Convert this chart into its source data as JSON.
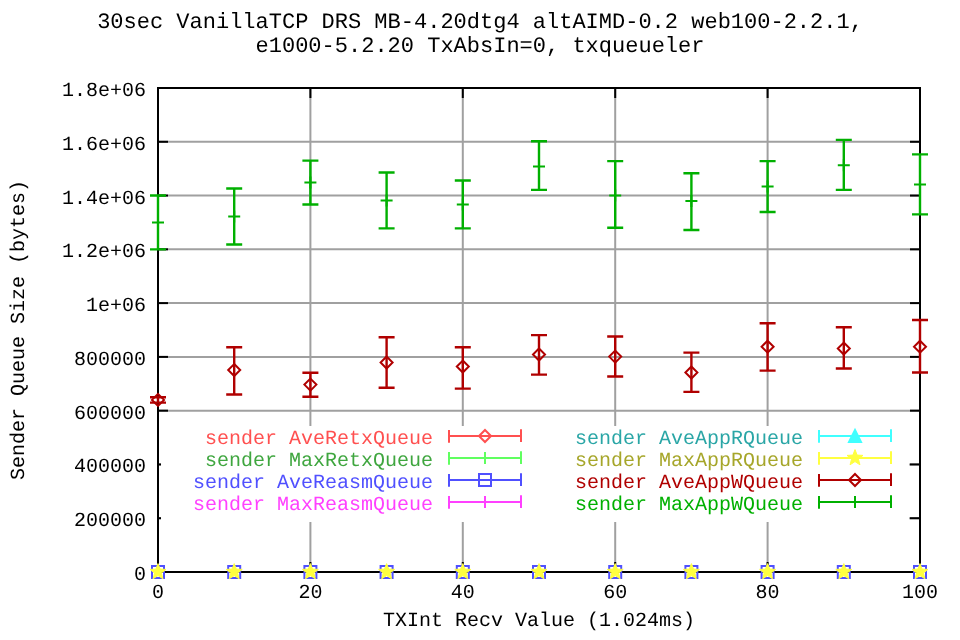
{
  "chart_data": {
    "type": "scatter",
    "title": "30sec VanillaTCP DRS MB-4.20dtg4 altAIMD-0.2 web100-2.2.1, e1000-5.2.20 TxAbsIn=0, txqueueler",
    "xlabel": "TXInt Recv Value (1.024ms)",
    "ylabel": "Sender Queue Size (bytes)",
    "x": [
      0,
      10,
      20,
      30,
      40,
      50,
      60,
      70,
      80,
      90,
      100
    ],
    "xlim": [
      0,
      100
    ],
    "xticks": [
      0,
      20,
      40,
      60,
      80,
      100
    ],
    "ylim": [
      0,
      1800000
    ],
    "yticks": [
      0,
      200000,
      400000,
      600000,
      800000,
      {
        "value": 1000000,
        "label": "1e+06"
      },
      {
        "value": 1200000,
        "label": "1.2e+06"
      },
      {
        "value": 1400000,
        "label": "1.4e+06"
      },
      {
        "value": 1600000,
        "label": "1.6e+06"
      },
      {
        "value": 1800000,
        "label": "1.8e+06"
      }
    ],
    "grid": true,
    "legend": "bottom",
    "series": [
      {
        "name": "sender AveRetxQueue",
        "color": "#ff5050",
        "marker": "diamond",
        "values": [
          null,
          null,
          null,
          null,
          null,
          null,
          null,
          null,
          null,
          null,
          null
        ]
      },
      {
        "name": "sender MaxRetxQueue",
        "color": "#60ff60",
        "marker": "cross",
        "values": [
          null,
          null,
          null,
          null,
          null,
          null,
          null,
          null,
          null,
          null,
          null
        ]
      },
      {
        "name": "sender AveReasmQueue",
        "color": "#5050ff",
        "marker": "square",
        "values": [
          0,
          0,
          0,
          0,
          0,
          0,
          0,
          0,
          0,
          0,
          0
        ]
      },
      {
        "name": "sender MaxReasmQueue",
        "color": "#ff40ff",
        "marker": "cross",
        "values": [
          null,
          null,
          null,
          null,
          null,
          null,
          null,
          null,
          null,
          null,
          null
        ]
      },
      {
        "name": "sender AveAppRQueue",
        "color": "#40ffff",
        "marker": "triangle",
        "values": [
          null,
          null,
          null,
          null,
          null,
          null,
          null,
          null,
          null,
          null,
          null
        ]
      },
      {
        "name": "sender MaxAppRQueue",
        "color": "#ffff40",
        "marker": "star",
        "values": [
          0,
          0,
          0,
          0,
          0,
          0,
          0,
          0,
          0,
          0,
          0
        ]
      },
      {
        "name": "sender AveAppWQueue",
        "color": "#b00000",
        "marker": "diamond",
        "values": [
          640000,
          751000,
          697000,
          779000,
          764000,
          809000,
          801000,
          742000,
          838000,
          831000,
          838000
        ],
        "errors": [
          [
            630000,
            650000
          ],
          [
            660000,
            836000
          ],
          [
            652000,
            741000
          ],
          [
            685000,
            873000
          ],
          [
            682000,
            836000
          ],
          [
            734000,
            881000
          ],
          [
            727000,
            876000
          ],
          [
            670000,
            816000
          ],
          [
            749000,
            925000
          ],
          [
            757000,
            910000
          ],
          [
            742000,
            937000
          ]
        ]
      },
      {
        "name": "sender MaxAppWQueue",
        "color": "#00b000",
        "marker": "cross",
        "values": [
          1300000,
          1322000,
          1449000,
          1382000,
          1367000,
          1508000,
          1400000,
          1380000,
          1434000,
          1513000,
          1441000
        ],
        "errors": [
          [
            1200000,
            1400000
          ],
          [
            1218000,
            1426000
          ],
          [
            1367000,
            1530000
          ],
          [
            1278000,
            1486000
          ],
          [
            1278000,
            1456000
          ],
          [
            1421000,
            1602000
          ],
          [
            1280000,
            1528000
          ],
          [
            1272000,
            1483000
          ],
          [
            1339000,
            1528000
          ],
          [
            1421000,
            1607000
          ],
          [
            1330000,
            1553000
          ]
        ]
      }
    ]
  }
}
